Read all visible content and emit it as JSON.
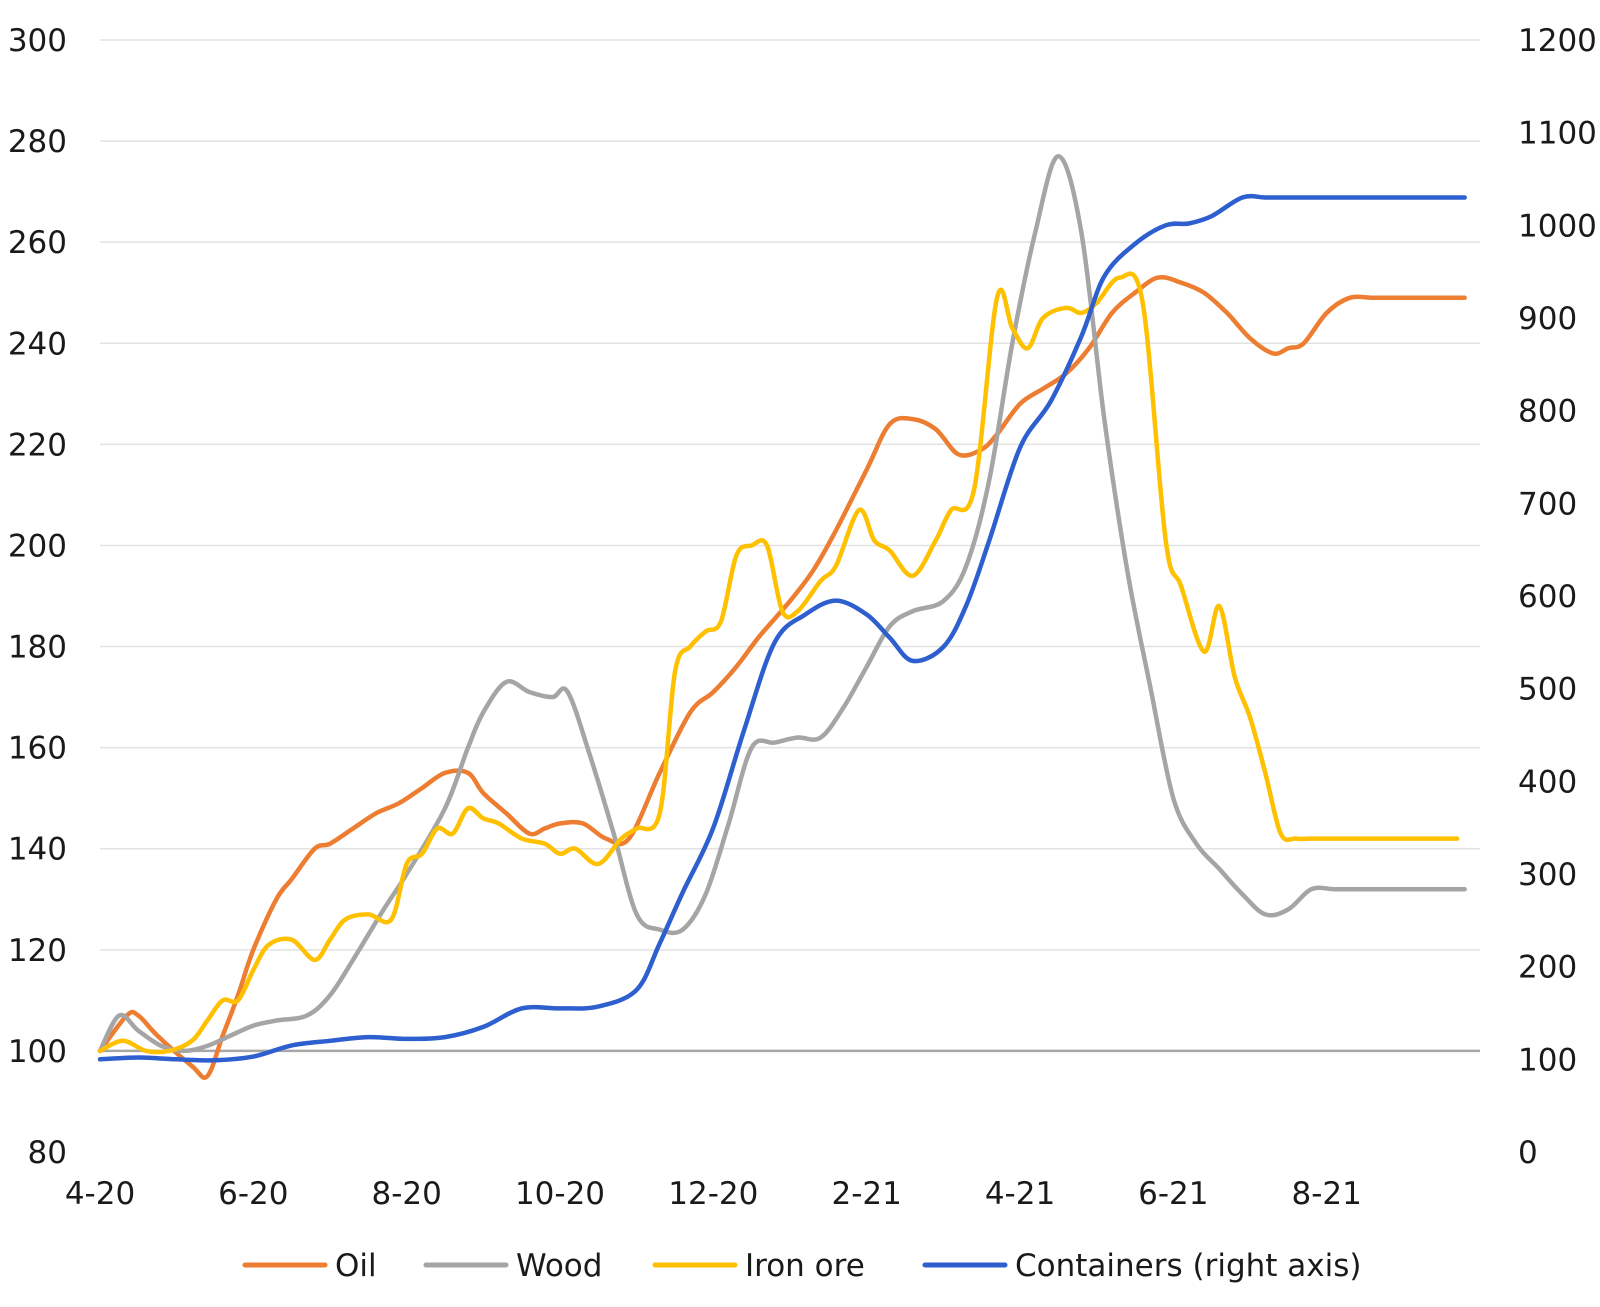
{
  "chart_data": {
    "type": "line",
    "title": "",
    "xlabel": "",
    "ylabel": "",
    "ylabel_right": "",
    "x_tick_labels": [
      "4-20",
      "6-20",
      "8-20",
      "10-20",
      "12-20",
      "2-21",
      "4-21",
      "6-21",
      "8-21"
    ],
    "y_left": {
      "min": 80,
      "max": 300,
      "step": 20,
      "ticks": [
        80,
        100,
        120,
        140,
        160,
        180,
        200,
        220,
        240,
        260,
        280,
        300
      ]
    },
    "y_right": {
      "min": 0,
      "max": 1200,
      "step": 100,
      "ticks": [
        0,
        100,
        200,
        300,
        400,
        500,
        600,
        700,
        800,
        900,
        1000,
        1100,
        1200
      ]
    },
    "x_range": [
      0,
      18
    ],
    "reference_line": 100,
    "grid": true,
    "legend_position": "bottom",
    "series": [
      {
        "name": "Oil",
        "color": "#ED7D31",
        "axis": "left",
        "x": [
          0,
          0.35,
          0.5,
          0.75,
          1.2,
          1.4,
          1.6,
          1.8,
          2.0,
          2.3,
          2.5,
          2.8,
          3.0,
          3.3,
          3.6,
          3.9,
          4.2,
          4.5,
          4.8,
          5.0,
          5.3,
          5.6,
          5.8,
          6.0,
          6.3,
          6.6,
          6.9,
          7.3,
          7.7,
          8.0,
          8.3,
          8.6,
          9.0,
          9.3,
          9.6,
          10.0,
          10.3,
          10.6,
          10.9,
          11.2,
          11.5,
          11.7,
          12.0,
          12.3,
          12.6,
          12.9,
          13.2,
          13.5,
          13.8,
          14.1,
          14.4,
          14.7,
          15.0,
          15.3,
          15.5,
          15.7,
          16.0,
          16.3,
          16.6,
          16.9,
          17.2,
          17.5,
          17.8
        ],
        "values": [
          100,
          107,
          107,
          103,
          97,
          95,
          103,
          111,
          120,
          130,
          134,
          140,
          141,
          144,
          147,
          149,
          152,
          155,
          155,
          151,
          147,
          143,
          144,
          145,
          145,
          142,
          142,
          155,
          167,
          171,
          176,
          182,
          189,
          195,
          203,
          215,
          224,
          225,
          223,
          218,
          219,
          222,
          228,
          231,
          234,
          239,
          246,
          250,
          253,
          252,
          250,
          246,
          241,
          238,
          239,
          240,
          246,
          249,
          249,
          249,
          249,
          249,
          249
        ]
      },
      {
        "name": "Wood",
        "color": "#A5A5A5",
        "axis": "left",
        "x": [
          0,
          0.25,
          0.5,
          0.8,
          1.1,
          1.4,
          1.7,
          2.0,
          2.3,
          2.7,
          3.0,
          3.3,
          3.7,
          4.0,
          4.5,
          4.8,
          5.0,
          5.3,
          5.6,
          5.9,
          6.1,
          6.4,
          6.7,
          7.0,
          7.3,
          7.6,
          7.9,
          8.2,
          8.5,
          8.8,
          9.1,
          9.4,
          9.7,
          10.0,
          10.3,
          10.6,
          11.0,
          11.3,
          11.6,
          11.9,
          12.2,
          12.5,
          12.8,
          13.1,
          13.4,
          13.7,
          14.0,
          14.3,
          14.6,
          14.9,
          15.2,
          15.5,
          15.8,
          16.1,
          16.4,
          16.7,
          17.0,
          17.3,
          17.6,
          17.8
        ],
        "values": [
          100,
          107,
          104,
          101,
          100,
          101,
          103,
          105,
          106,
          107,
          111,
          118,
          128,
          135,
          148,
          160,
          167,
          173,
          171,
          170,
          171,
          158,
          143,
          127,
          124,
          124,
          131,
          145,
          160,
          161,
          162,
          162,
          168,
          176,
          184,
          187,
          189,
          196,
          213,
          240,
          262,
          277,
          262,
          225,
          195,
          172,
          150,
          141,
          136,
          131,
          127,
          128,
          132,
          132,
          132,
          132,
          132,
          132,
          132,
          132
        ]
      },
      {
        "name": "Iron ore",
        "color": "#FFC000",
        "axis": "left",
        "x": [
          0,
          0.3,
          0.6,
          0.9,
          1.2,
          1.4,
          1.6,
          1.8,
          2.0,
          2.2,
          2.5,
          2.8,
          3.0,
          3.2,
          3.5,
          3.8,
          4.0,
          4.2,
          4.4,
          4.6,
          4.8,
          5.0,
          5.2,
          5.5,
          5.8,
          6.0,
          6.2,
          6.5,
          6.8,
          7.0,
          7.3,
          7.5,
          7.7,
          7.9,
          8.1,
          8.3,
          8.5,
          8.7,
          8.9,
          9.1,
          9.4,
          9.6,
          9.9,
          10.1,
          10.3,
          10.6,
          10.9,
          11.1,
          11.4,
          11.7,
          11.9,
          12.1,
          12.3,
          12.6,
          12.8,
          13.0,
          13.3,
          13.6,
          13.9,
          14.1,
          14.4,
          14.6,
          14.8,
          15.0,
          15.2,
          15.4,
          15.6,
          15.8,
          16.0,
          16.2,
          16.4,
          16.6,
          16.8,
          17.1,
          17.4,
          17.7
        ],
        "values": [
          100,
          102,
          100,
          100,
          102,
          106,
          110,
          110,
          116,
          121,
          122,
          118,
          122,
          126,
          127,
          126,
          137,
          139,
          144,
          143,
          148,
          146,
          145,
          142,
          141,
          139,
          140,
          137,
          142,
          144,
          147,
          175,
          180,
          183,
          185,
          198,
          200,
          200,
          187,
          187,
          193,
          196,
          207,
          201,
          199,
          194,
          201,
          207,
          211,
          249,
          243,
          239,
          245,
          247,
          246,
          248,
          253,
          248,
          201,
          192,
          179,
          188,
          174,
          166,
          155,
          143,
          142,
          142,
          142,
          142,
          142,
          142,
          142,
          142,
          142,
          142
        ]
      },
      {
        "name": "Containers (right axis)",
        "color": "#2E5FCF",
        "axis": "right",
        "x": [
          0,
          0.5,
          1.0,
          1.5,
          2.0,
          2.5,
          3.0,
          3.5,
          4.0,
          4.5,
          5.0,
          5.5,
          6.0,
          6.5,
          7.0,
          7.3,
          7.6,
          8.0,
          8.4,
          8.8,
          9.2,
          9.6,
          10.0,
          10.3,
          10.6,
          11.0,
          11.3,
          11.6,
          12.0,
          12.4,
          12.8,
          13.1,
          13.5,
          13.9,
          14.2,
          14.5,
          14.9,
          15.2,
          15.5,
          15.8,
          16.1,
          16.4,
          16.7,
          17.0,
          17.3,
          17.6,
          17.8
        ],
        "values": [
          100,
          102,
          100,
          99,
          103,
          115,
          120,
          124,
          122,
          124,
          135,
          155,
          155,
          157,
          175,
          225,
          280,
          350,
          455,
          550,
          580,
          595,
          580,
          555,
          530,
          545,
          590,
          660,
          760,
          810,
          880,
          945,
          980,
          1000,
          1002,
          1010,
          1030,
          1030,
          1030,
          1030,
          1030,
          1030,
          1030,
          1030,
          1030,
          1030,
          1030
        ]
      }
    ]
  }
}
